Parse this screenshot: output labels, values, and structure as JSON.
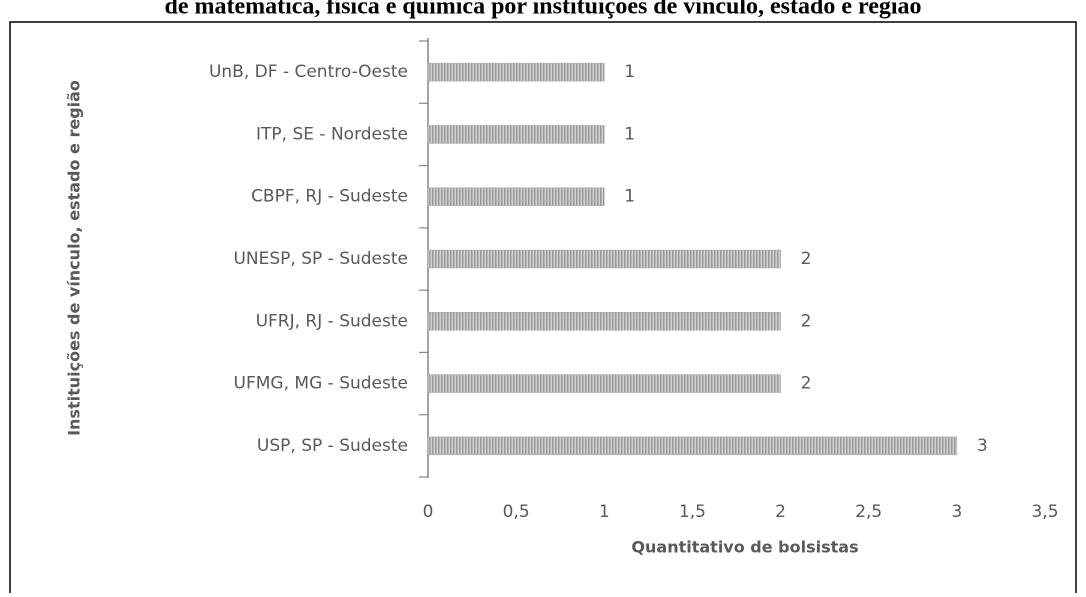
{
  "chart_data": {
    "type": "bar",
    "orientation": "horizontal",
    "title": "de matemática, física e química por instituições de vínculo, estado e região",
    "x_label": "Quantitativo de bolsistas",
    "y_label": "Instituições de vínculo, estado e região",
    "categories": [
      "UnB, DF - Centro-Oeste",
      "ITP, SE - Nordeste",
      "CBPF, RJ - Sudeste",
      "UNESP, SP - Sudeste",
      "UFRJ, RJ - Sudeste",
      "UFMG, MG - Sudeste",
      "USP, SP - Sudeste"
    ],
    "values": [
      1,
      1,
      1,
      2,
      2,
      2,
      3
    ],
    "color": "#a8a8a8",
    "xlim": [
      0,
      3.5
    ],
    "xticks": [
      0,
      {
        "value": 0.5,
        "label": "0,5"
      },
      1,
      {
        "value": 1.5,
        "label": "1,5"
      },
      2,
      {
        "value": 2.5,
        "label": "2,5"
      },
      3,
      {
        "value": 3.5,
        "label": "3,5"
      }
    ],
    "grid": false
  }
}
